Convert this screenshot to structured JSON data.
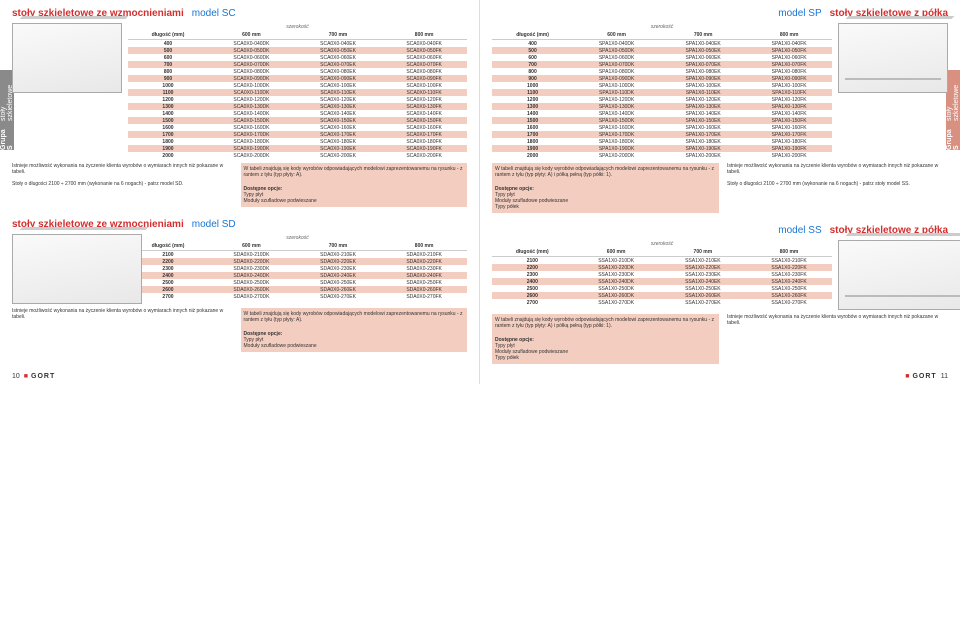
{
  "sideTab": {
    "group": "Grupa S",
    "sub": "stoły szkieletowe"
  },
  "sections": {
    "SC": {
      "title": "stoły szkieletowe ze wzmocnieniami",
      "model": "model SC"
    },
    "SP": {
      "title": "stoły szkieletowe z półką",
      "model": "model SP"
    },
    "SD": {
      "title": "stoły szkieletowe ze wzmocnieniami",
      "model": "model SD"
    },
    "SS": {
      "title": "stoły szkieletowe z półką",
      "model": "model SS"
    }
  },
  "tableHeaders": {
    "width": "szerokość",
    "length": "długość (mm)",
    "cols": [
      "600 mm",
      "700 mm",
      "800 mm"
    ]
  },
  "tableSC": {
    "rows": [
      [
        "400",
        "SCA0X0-040DK",
        "SCA0X0-040EK",
        "SCA0X0-040FK"
      ],
      [
        "500",
        "SCA0X0-050DK",
        "SCA0X0-050EK",
        "SCA0X0-050FK"
      ],
      [
        "600",
        "SCA0X0-060DK",
        "SCA0X0-060EK",
        "SCA0X0-060FK"
      ],
      [
        "700",
        "SCA0X0-070DK",
        "SCA0X0-070EK",
        "SCA0X0-070FK"
      ],
      [
        "800",
        "SCA0X0-080DK",
        "SCA0X0-080EK",
        "SCA0X0-080FK"
      ],
      [
        "900",
        "SCA0X0-090DK",
        "SCA0X0-090EK",
        "SCA0X0-090FK"
      ],
      [
        "1000",
        "SCA0X0-100DK",
        "SCA0X0-100EK",
        "SCA0X0-100FK"
      ],
      [
        "1100",
        "SCA0X0-110DK",
        "SCA0X0-110EK",
        "SCA0X0-110FK"
      ],
      [
        "1200",
        "SCA0X0-120DK",
        "SCA0X0-120EK",
        "SCA0X0-120FK"
      ],
      [
        "1300",
        "SCA0X0-130DK",
        "SCA0X0-130EK",
        "SCA0X0-130FK"
      ],
      [
        "1400",
        "SCA0X0-140DK",
        "SCA0X0-140EK",
        "SCA0X0-140FK"
      ],
      [
        "1500",
        "SCA0X0-150DK",
        "SCA0X0-150EK",
        "SCA0X0-150FK"
      ],
      [
        "1600",
        "SCA0X0-160DK",
        "SCA0X0-160EK",
        "SCA0X0-160FK"
      ],
      [
        "1700",
        "SCA0X0-170DK",
        "SCA0X0-170EK",
        "SCA0X0-170FK"
      ],
      [
        "1800",
        "SCA0X0-180DK",
        "SCA0X0-180EK",
        "SCA0X0-180FK"
      ],
      [
        "1900",
        "SCA0X0-190DK",
        "SCA0X0-190EK",
        "SCA0X0-190FK"
      ],
      [
        "2000",
        "SCA0X0-200DK",
        "SCA0X0-200EK",
        "SCA0X0-200FK"
      ]
    ]
  },
  "tableSP": {
    "rows": [
      [
        "400",
        "SPA1X0-040DK",
        "SPA1X0-040EK",
        "SPA1X0-040FK"
      ],
      [
        "500",
        "SPA1X0-050DK",
        "SPA1X0-050EK",
        "SPA1X0-050FK"
      ],
      [
        "600",
        "SPA1X0-060DK",
        "SPA1X0-060EK",
        "SPA1X0-060FK"
      ],
      [
        "700",
        "SPA1X0-070DK",
        "SPA1X0-070EK",
        "SPA1X0-070FK"
      ],
      [
        "800",
        "SPA1X0-080DK",
        "SPA1X0-080EK",
        "SPA1X0-080FK"
      ],
      [
        "900",
        "SPA1X0-090DK",
        "SPA1X0-090EK",
        "SPA1X0-090FK"
      ],
      [
        "1000",
        "SPA1X0-100DK",
        "SPA1X0-100EK",
        "SPA1X0-100FK"
      ],
      [
        "1100",
        "SPA1X0-110DK",
        "SPA1X0-110EK",
        "SPA1X0-110FK"
      ],
      [
        "1200",
        "SPA1X0-120DK",
        "SPA1X0-120EK",
        "SPA1X0-120FK"
      ],
      [
        "1300",
        "SPA1X0-130DK",
        "SPA1X0-130EK",
        "SPA1X0-130FK"
      ],
      [
        "1400",
        "SPA1X0-140DK",
        "SPA1X0-140EK",
        "SPA1X0-140FK"
      ],
      [
        "1500",
        "SPA1X0-150DK",
        "SPA1X0-150EK",
        "SPA1X0-150FK"
      ],
      [
        "1600",
        "SPA1X0-160DK",
        "SPA1X0-160EK",
        "SPA1X0-160FK"
      ],
      [
        "1700",
        "SPA1X0-170DK",
        "SPA1X0-170EK",
        "SPA1X0-170FK"
      ],
      [
        "1800",
        "SPA1X0-180DK",
        "SPA1X0-180EK",
        "SPA1X0-180FK"
      ],
      [
        "1900",
        "SPA1X0-190DK",
        "SPA1X0-190EK",
        "SPA1X0-190FK"
      ],
      [
        "2000",
        "SPA1X0-200DK",
        "SPA1X0-200EK",
        "SPA1X0-200FK"
      ]
    ]
  },
  "tableSD": {
    "rows": [
      [
        "2100",
        "SDA0X0-210DK",
        "SDA0X0-210EK",
        "SDA0X0-210FK"
      ],
      [
        "2200",
        "SDA0X0-220DK",
        "SDA0X0-220EK",
        "SDA0X0-220FK"
      ],
      [
        "2300",
        "SDA0X0-230DK",
        "SDA0X0-230EK",
        "SDA0X0-230FK"
      ],
      [
        "2400",
        "SDA0X0-240DK",
        "SDA0X0-240EK",
        "SDA0X0-240FK"
      ],
      [
        "2500",
        "SDA0X0-250DK",
        "SDA0X0-250EK",
        "SDA0X0-250FK"
      ],
      [
        "2600",
        "SDA0X0-260DK",
        "SDA0X0-260EK",
        "SDA0X0-260FK"
      ],
      [
        "2700",
        "SDA0X0-270DK",
        "SDA0X0-270EK",
        "SDA0X0-270FK"
      ]
    ]
  },
  "tableSS": {
    "rows": [
      [
        "2100",
        "SSA1X0-210DK",
        "SSA1X0-210EK",
        "SSA1X0-210FK"
      ],
      [
        "2200",
        "SSA1X0-220DK",
        "SSA1X0-220EK",
        "SSA1X0-220FK"
      ],
      [
        "2300",
        "SSA1X0-230DK",
        "SSA1X0-230EK",
        "SSA1X0-230FK"
      ],
      [
        "2400",
        "SSA1X0-240DK",
        "SSA1X0-240EK",
        "SSA1X0-240FK"
      ],
      [
        "2500",
        "SSA1X0-250DK",
        "SSA1X0-250EK",
        "SSA1X0-250FK"
      ],
      [
        "2600",
        "SSA1X0-260DK",
        "SSA1X0-260EK",
        "SSA1X0-260FK"
      ],
      [
        "2700",
        "SSA1X0-270DK",
        "SSA1X0-270EK",
        "SSA1X0-270FK"
      ]
    ]
  },
  "notes": {
    "custom": "Istnieje możliwość wykonania na życzenie klienta wyrobów o wymiarach innych niż pokazane w tabeli.",
    "lengthSD": "Stoły o długości 2100 ÷ 2700 mm (wykonanie na 6 nogach) - patrz model SD.",
    "lengthSS": "Stoły o długości 2100 ÷ 2700 mm (wykonanie na 6 nogach) - patrz stoły model SS.",
    "codesA": "W tabeli znajdują się kody wyrobów odpowiadających modelowi zaprezentowanemu na rysunku - z rantem z tyłu (typ płyty: A).",
    "codesAShelf": "W tabeli znajdują się kody wyrobów odpowiadających modelowi zaprezentowanemu na rysunku - z rantem z tyłu (typ płyty: A) i półką pełną (typ półki: 1).",
    "optionsLabel": "Dostępne opcje:",
    "opt1": "Typy płyt",
    "opt2": "Moduły szufladowe podwieszane",
    "opt3": "Typy półek"
  },
  "footer": {
    "brand": "GORT",
    "pageLeft": "10",
    "pageRight": "11"
  }
}
